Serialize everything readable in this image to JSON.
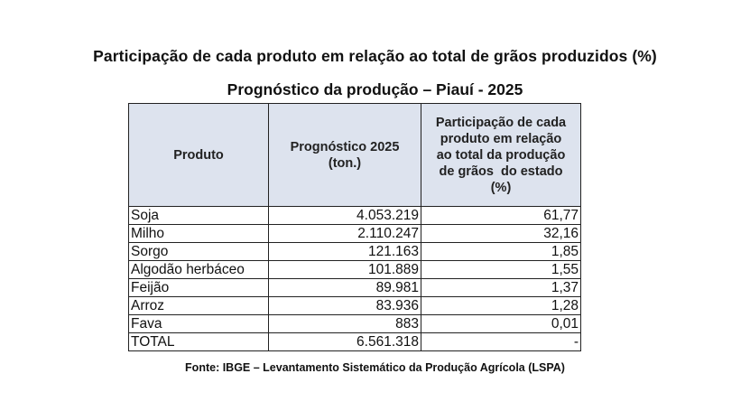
{
  "title": "Participação de cada produto em relação ao total de grãos produzidos (%)",
  "subtitle": "Prognóstico da produção – Piauí - 2025",
  "source": "Fonte: IBGE – Levantamento Sistemático da Produção Agrícola (LSPA)",
  "chart_data": {
    "type": "table",
    "title": "Prognóstico da produção – Piauí - 2025",
    "columns": [
      "Produto",
      "Prognóstico 2025 (ton.)",
      "Participação de cada produto em relação ao total da produção de grãos do estado (%)"
    ],
    "rows": [
      {
        "produto": "Soja",
        "prognostico": "4.053.219",
        "participacao": "61,77"
      },
      {
        "produto": "Milho",
        "prognostico": "2.110.247",
        "participacao": "32,16"
      },
      {
        "produto": "Sorgo",
        "prognostico": "121.163",
        "participacao": "1,85"
      },
      {
        "produto": "Algodão herbáceo",
        "prognostico": "101.889",
        "participacao": "1,55"
      },
      {
        "produto": "Feijão",
        "prognostico": "89.981",
        "participacao": "1,37"
      },
      {
        "produto": "Arroz",
        "prognostico": "83.936",
        "participacao": "1,28"
      },
      {
        "produto": "Fava",
        "prognostico": "883",
        "participacao": "0,01"
      },
      {
        "produto": "TOTAL",
        "prognostico": "6.561.318",
        "participacao": "-"
      }
    ]
  },
  "header": {
    "produto": "Produto",
    "prognostico_lines": [
      "Prognóstico 2025",
      "(ton.)"
    ],
    "participacao_lines": [
      "Participação de cada",
      "produto em relação",
      "ao total da produção",
      "de grãos  do estado",
      "(%)"
    ]
  },
  "colors": {
    "header_bg": "#dde3ee",
    "border": "#222222"
  }
}
